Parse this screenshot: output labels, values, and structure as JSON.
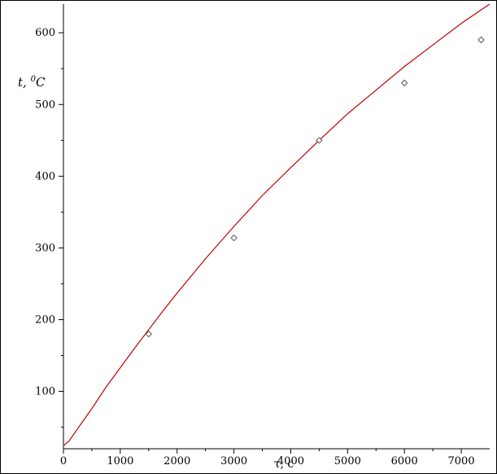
{
  "chart_data": {
    "type": "scatter",
    "title": "",
    "xlabel": "τ, с",
    "ylabel_main": "t, ",
    "ylabel_sup": "0",
    "ylabel_unit": "C",
    "xlim": [
      0,
      7500
    ],
    "ylim": [
      20,
      640
    ],
    "x_ticks": [
      0,
      1000,
      2000,
      3000,
      4000,
      5000,
      6000,
      7000
    ],
    "y_ticks": [
      100,
      200,
      300,
      400,
      500,
      600
    ],
    "grid": false,
    "legend": "none",
    "fit_curve": {
      "color": "#c00000",
      "x": [
        0,
        100,
        250,
        500,
        750,
        1000,
        1250,
        1500,
        1750,
        2000,
        2500,
        3000,
        3500,
        4000,
        4500,
        5000,
        5500,
        6000,
        6500,
        7000,
        7500
      ],
      "y": [
        24,
        31,
        48,
        76,
        106,
        133,
        160,
        186,
        212,
        237,
        285,
        330,
        373,
        412,
        450,
        487,
        520,
        553,
        583,
        613,
        640
      ]
    },
    "measured": {
      "color": "#555555",
      "x": [
        1500,
        3000,
        4500,
        6000,
        7350
      ],
      "y": [
        180,
        314,
        450,
        530,
        590
      ]
    }
  }
}
